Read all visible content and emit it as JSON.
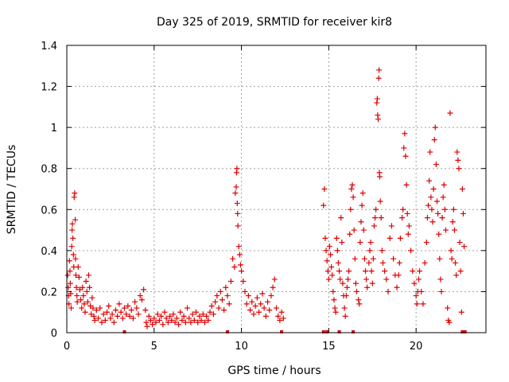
{
  "chart_data": {
    "type": "scatter",
    "title": "Day 325 of 2019, SRMTID for receiver kir8",
    "xlabel": "GPS time / hours",
    "ylabel": "SRMTID / TECUs",
    "xlim": [
      0,
      24
    ],
    "ylim": [
      0,
      1.4
    ],
    "xticks": [
      0,
      5,
      10,
      15,
      20
    ],
    "xtick_labels": [
      "0",
      "5",
      "10",
      "15",
      "20"
    ],
    "yticks": [
      0,
      0.2,
      0.4,
      0.6,
      0.8,
      1.0,
      1.2,
      1.4
    ],
    "ytick_labels": [
      "0",
      "0.2",
      "0.4",
      "0.6",
      "0.8",
      "1",
      "1.2",
      "1.4"
    ],
    "grid": true,
    "marker": "+",
    "series": [
      {
        "name": "kir8",
        "color": "#dd0000",
        "points": [
          [
            0.05,
            0.28
          ],
          [
            0.08,
            0.22
          ],
          [
            0.1,
            0.18
          ],
          [
            0.12,
            0.14
          ],
          [
            0.15,
            0.35
          ],
          [
            0.18,
            0.3
          ],
          [
            0.2,
            0.24
          ],
          [
            0.22,
            0.19
          ],
          [
            0.25,
            0.12
          ],
          [
            0.28,
            0.42
          ],
          [
            0.3,
            0.5
          ],
          [
            0.32,
            0.53
          ],
          [
            0.35,
            0.46
          ],
          [
            0.38,
            0.38
          ],
          [
            0.4,
            0.32
          ],
          [
            0.42,
            0.66
          ],
          [
            0.45,
            0.68
          ],
          [
            0.48,
            0.55
          ],
          [
            0.5,
            0.36
          ],
          [
            0.52,
            0.28
          ],
          [
            0.55,
            0.22
          ],
          [
            0.58,
            0.18
          ],
          [
            0.6,
            0.15
          ],
          [
            0.65,
            0.32
          ],
          [
            0.7,
            0.27
          ],
          [
            0.75,
            0.21
          ],
          [
            0.8,
            0.16
          ],
          [
            0.85,
            0.12
          ],
          [
            0.9,
            0.22
          ],
          [
            0.95,
            0.18
          ],
          [
            1.0,
            0.14
          ],
          [
            1.05,
            0.1
          ],
          [
            1.1,
            0.25
          ],
          [
            1.15,
            0.2
          ],
          [
            1.2,
            0.15
          ],
          [
            1.25,
            0.28
          ],
          [
            1.3,
            0.22
          ],
          [
            1.35,
            0.13
          ],
          [
            1.4,
            0.09
          ],
          [
            1.45,
            0.17
          ],
          [
            1.5,
            0.12
          ],
          [
            1.55,
            0.08
          ],
          [
            1.6,
            0.06
          ],
          [
            1.7,
            0.11
          ],
          [
            1.8,
            0.07
          ],
          [
            1.9,
            0.12
          ],
          [
            2.0,
            0.05
          ],
          [
            2.1,
            0.09
          ],
          [
            2.2,
            0.06
          ],
          [
            2.3,
            0.1
          ],
          [
            2.4,
            0.13
          ],
          [
            2.5,
            0.07
          ],
          [
            2.6,
            0.09
          ],
          [
            2.7,
            0.05
          ],
          [
            2.8,
            0.11
          ],
          [
            2.9,
            0.08
          ],
          [
            3.0,
            0.14
          ],
          [
            3.1,
            0.1
          ],
          [
            3.2,
            0.07
          ],
          [
            3.3,
            0.12
          ],
          [
            3.4,
            0.09
          ],
          [
            3.5,
            0.13
          ],
          [
            3.6,
            0.08
          ],
          [
            3.7,
            0.11
          ],
          [
            3.8,
            0.07
          ],
          [
            3.9,
            0.15
          ],
          [
            4.0,
            0.12
          ],
          [
            4.1,
            0.09
          ],
          [
            4.2,
            0.18
          ],
          [
            4.3,
            0.16
          ],
          [
            4.4,
            0.21
          ],
          [
            4.5,
            0.11
          ],
          [
            4.55,
            0.05
          ],
          [
            4.6,
            0.03
          ],
          [
            4.7,
            0.08
          ],
          [
            4.8,
            0.06
          ],
          [
            4.9,
            0.04
          ],
          [
            5.0,
            0.07
          ],
          [
            5.1,
            0.05
          ],
          [
            5.2,
            0.09
          ],
          [
            5.3,
            0.06
          ],
          [
            5.4,
            0.08
          ],
          [
            5.5,
            0.04
          ],
          [
            5.6,
            0.1
          ],
          [
            5.7,
            0.07
          ],
          [
            5.8,
            0.05
          ],
          [
            5.9,
            0.08
          ],
          [
            6.0,
            0.06
          ],
          [
            6.1,
            0.09
          ],
          [
            6.2,
            0.05
          ],
          [
            6.3,
            0.07
          ],
          [
            6.4,
            0.04
          ],
          [
            6.5,
            0.1
          ],
          [
            6.6,
            0.06
          ],
          [
            6.7,
            0.08
          ],
          [
            6.8,
            0.05
          ],
          [
            6.9,
            0.12
          ],
          [
            7.0,
            0.07
          ],
          [
            7.1,
            0.05
          ],
          [
            7.2,
            0.09
          ],
          [
            7.3,
            0.06
          ],
          [
            7.4,
            0.1
          ],
          [
            7.5,
            0.05
          ],
          [
            7.6,
            0.08
          ],
          [
            7.7,
            0.06
          ],
          [
            7.8,
            0.09
          ],
          [
            7.9,
            0.05
          ],
          [
            8.0,
            0.08
          ],
          [
            8.1,
            0.06
          ],
          [
            8.2,
            0.1
          ],
          [
            8.3,
            0.13
          ],
          [
            8.4,
            0.09
          ],
          [
            8.5,
            0.15
          ],
          [
            8.6,
            0.18
          ],
          [
            8.7,
            0.12
          ],
          [
            8.8,
            0.2
          ],
          [
            8.9,
            0.16
          ],
          [
            9.0,
            0.11
          ],
          [
            9.1,
            0.22
          ],
          [
            9.2,
            0.18
          ],
          [
            9.3,
            0.14
          ],
          [
            9.4,
            0.25
          ],
          [
            9.5,
            0.36
          ],
          [
            9.6,
            0.32
          ],
          [
            9.65,
            0.68
          ],
          [
            9.7,
            0.71
          ],
          [
            9.72,
            0.78
          ],
          [
            9.74,
            0.8
          ],
          [
            9.76,
            0.63
          ],
          [
            9.78,
            0.58
          ],
          [
            9.8,
            0.52
          ],
          [
            9.85,
            0.42
          ],
          [
            9.9,
            0.38
          ],
          [
            9.95,
            0.33
          ],
          [
            10.0,
            0.3
          ],
          [
            10.1,
            0.25
          ],
          [
            10.2,
            0.2
          ],
          [
            10.3,
            0.14
          ],
          [
            10.4,
            0.18
          ],
          [
            10.5,
            0.11
          ],
          [
            10.6,
            0.15
          ],
          [
            10.7,
            0.09
          ],
          [
            10.8,
            0.13
          ],
          [
            10.9,
            0.17
          ],
          [
            11.0,
            0.1
          ],
          [
            11.1,
            0.14
          ],
          [
            11.2,
            0.19
          ],
          [
            11.3,
            0.12
          ],
          [
            11.4,
            0.08
          ],
          [
            11.5,
            0.15
          ],
          [
            11.6,
            0.11
          ],
          [
            11.7,
            0.18
          ],
          [
            11.8,
            0.22
          ],
          [
            11.9,
            0.26
          ],
          [
            12.0,
            0.12
          ],
          [
            12.1,
            0.08
          ],
          [
            12.2,
            0.06
          ],
          [
            12.3,
            0.1
          ],
          [
            12.4,
            0.07
          ],
          [
            14.7,
            0.62
          ],
          [
            14.75,
            0.7
          ],
          [
            14.8,
            0.46
          ],
          [
            14.85,
            0.4
          ],
          [
            14.9,
            0.35
          ],
          [
            14.95,
            0.3
          ],
          [
            15.0,
            0.26
          ],
          [
            15.05,
            0.42
          ],
          [
            15.1,
            0.38
          ],
          [
            15.15,
            0.32
          ],
          [
            15.2,
            0.28
          ],
          [
            15.25,
            0.2
          ],
          [
            15.3,
            0.16
          ],
          [
            15.35,
            0.12
          ],
          [
            15.4,
            0.1
          ],
          [
            15.45,
            0.46
          ],
          [
            15.5,
            0.4
          ],
          [
            15.55,
            0.34
          ],
          [
            15.6,
            0.3
          ],
          [
            15.65,
            0.26
          ],
          [
            15.7,
            0.56
          ],
          [
            15.75,
            0.44
          ],
          [
            15.8,
            0.24
          ],
          [
            15.85,
            0.18
          ],
          [
            15.9,
            0.12
          ],
          [
            15.95,
            0.08
          ],
          [
            16.0,
            0.18
          ],
          [
            16.05,
            0.22
          ],
          [
            16.1,
            0.26
          ],
          [
            16.15,
            0.3
          ],
          [
            16.2,
            0.48
          ],
          [
            16.25,
            0.6
          ],
          [
            16.3,
            0.7
          ],
          [
            16.35,
            0.72
          ],
          [
            16.4,
            0.66
          ],
          [
            16.45,
            0.5
          ],
          [
            16.5,
            0.36
          ],
          [
            16.55,
            0.24
          ],
          [
            16.6,
            0.2
          ],
          [
            16.7,
            0.16
          ],
          [
            16.75,
            0.14
          ],
          [
            16.8,
            0.44
          ],
          [
            16.85,
            0.54
          ],
          [
            16.9,
            0.62
          ],
          [
            16.95,
            0.68
          ],
          [
            17.0,
            0.5
          ],
          [
            17.05,
            0.36
          ],
          [
            17.1,
            0.3
          ],
          [
            17.15,
            0.26
          ],
          [
            17.2,
            0.22
          ],
          [
            17.3,
            0.34
          ],
          [
            17.35,
            0.4
          ],
          [
            17.4,
            0.44
          ],
          [
            17.45,
            0.3
          ],
          [
            17.5,
            0.24
          ],
          [
            17.55,
            0.36
          ],
          [
            17.6,
            0.52
          ],
          [
            17.65,
            0.56
          ],
          [
            17.7,
            0.6
          ],
          [
            17.75,
            1.12
          ],
          [
            17.78,
            1.14
          ],
          [
            17.8,
            1.06
          ],
          [
            17.83,
            1.04
          ],
          [
            17.86,
            1.24
          ],
          [
            17.88,
            1.28
          ],
          [
            17.9,
            0.78
          ],
          [
            17.92,
            0.76
          ],
          [
            17.95,
            0.64
          ],
          [
            18.0,
            0.56
          ],
          [
            18.05,
            0.4
          ],
          [
            18.1,
            0.34
          ],
          [
            18.2,
            0.3
          ],
          [
            18.3,
            0.26
          ],
          [
            18.4,
            0.2
          ],
          [
            18.5,
            0.46
          ],
          [
            18.6,
            0.52
          ],
          [
            18.7,
            0.36
          ],
          [
            18.8,
            0.28
          ],
          [
            18.9,
            0.22
          ],
          [
            19.0,
            0.28
          ],
          [
            19.05,
            0.34
          ],
          [
            19.1,
            0.46
          ],
          [
            19.2,
            0.56
          ],
          [
            19.25,
            0.6
          ],
          [
            19.3,
            0.9
          ],
          [
            19.35,
            0.97
          ],
          [
            19.4,
            0.86
          ],
          [
            19.45,
            0.72
          ],
          [
            19.5,
            0.58
          ],
          [
            19.55,
            0.48
          ],
          [
            19.6,
            0.52
          ],
          [
            19.7,
            0.4
          ],
          [
            19.8,
            0.3
          ],
          [
            19.9,
            0.24
          ],
          [
            20.0,
            0.18
          ],
          [
            20.05,
            0.14
          ],
          [
            20.1,
            0.2
          ],
          [
            20.15,
            0.26
          ],
          [
            20.2,
            0.3
          ],
          [
            20.3,
            0.2
          ],
          [
            20.4,
            0.14
          ],
          [
            20.5,
            0.34
          ],
          [
            20.6,
            0.44
          ],
          [
            20.65,
            0.56
          ],
          [
            20.7,
            0.62
          ],
          [
            20.75,
            0.74
          ],
          [
            20.8,
            0.88
          ],
          [
            20.85,
            0.66
          ],
          [
            20.9,
            0.6
          ],
          [
            20.95,
            0.54
          ],
          [
            21.0,
            0.7
          ],
          [
            21.05,
            0.94
          ],
          [
            21.1,
            1.0
          ],
          [
            21.15,
            0.82
          ],
          [
            21.2,
            0.64
          ],
          [
            21.25,
            0.58
          ],
          [
            21.3,
            0.48
          ],
          [
            21.35,
            0.36
          ],
          [
            21.4,
            0.26
          ],
          [
            21.45,
            0.2
          ],
          [
            21.5,
            0.56
          ],
          [
            21.55,
            0.66
          ],
          [
            21.6,
            0.72
          ],
          [
            21.65,
            0.6
          ],
          [
            21.7,
            0.5
          ],
          [
            21.8,
            0.12
          ],
          [
            21.85,
            0.06
          ],
          [
            21.9,
            0.05
          ],
          [
            21.95,
            1.07
          ],
          [
            22.0,
            0.4
          ],
          [
            22.05,
            0.36
          ],
          [
            22.1,
            0.54
          ],
          [
            22.15,
            0.6
          ],
          [
            22.2,
            0.5
          ],
          [
            22.25,
            0.34
          ],
          [
            22.3,
            0.28
          ],
          [
            22.35,
            0.88
          ],
          [
            22.4,
            0.84
          ],
          [
            22.45,
            0.8
          ],
          [
            22.5,
            0.44
          ],
          [
            22.55,
            0.3
          ],
          [
            22.6,
            0.1
          ],
          [
            22.65,
            0.7
          ],
          [
            22.7,
            0.58
          ],
          [
            22.75,
            0.42
          ]
        ]
      }
    ],
    "baseline_points": [
      3.3,
      9.2,
      12.3,
      14.7,
      14.9,
      15.6,
      16.4,
      22.65,
      22.8
    ]
  }
}
